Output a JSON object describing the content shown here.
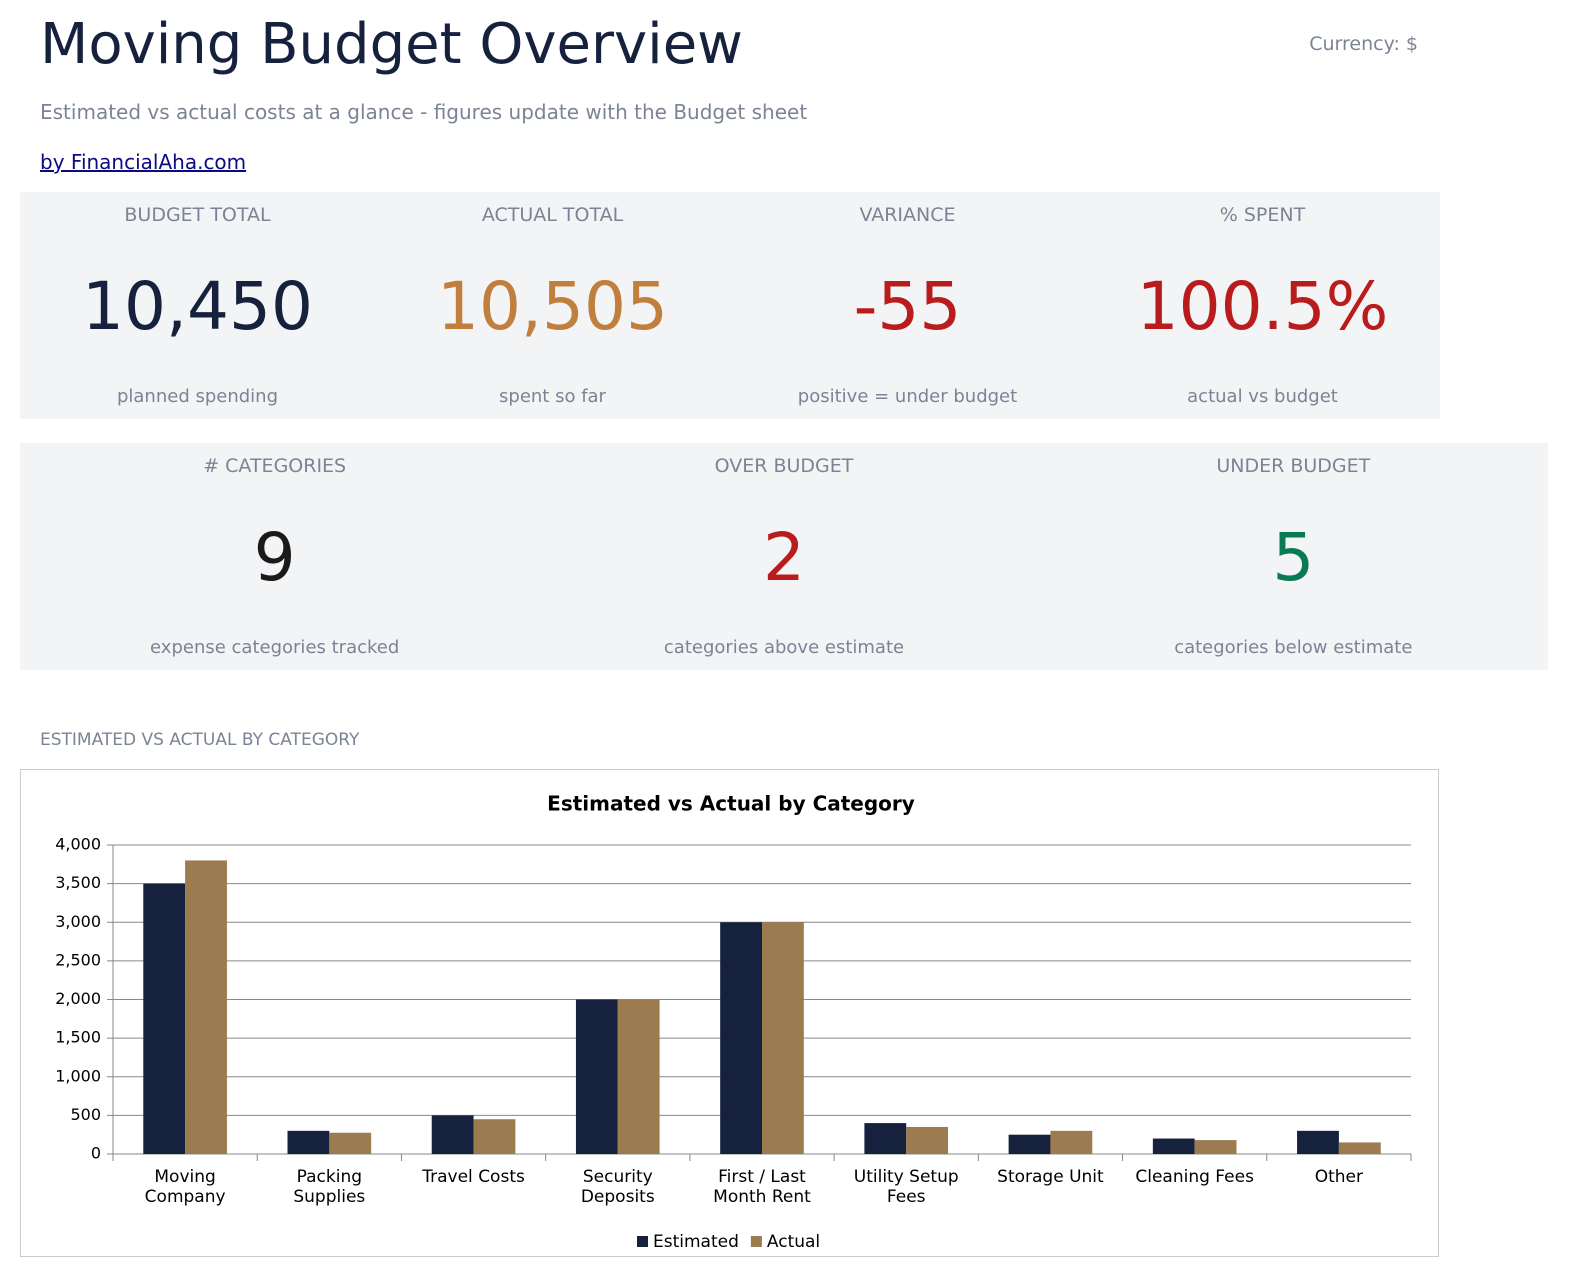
{
  "header": {
    "title": "Moving Budget Overview",
    "currency": "Currency: $",
    "subtitle": "Estimated vs actual costs at a glance - figures update with the Budget sheet",
    "link": "by FinancialAha.com"
  },
  "kpis_top": [
    {
      "label": "BUDGET TOTAL",
      "value": "10,450",
      "note": "planned spending"
    },
    {
      "label": "ACTUAL TOTAL",
      "value": "10,505",
      "note": "spent so far"
    },
    {
      "label": "VARIANCE",
      "value": "-55",
      "note": "positive = under budget"
    },
    {
      "label": "% SPENT",
      "value": "100.5%",
      "note": "actual vs budget"
    }
  ],
  "kpis_bottom": [
    {
      "label": "# CATEGORIES",
      "value": "9",
      "note": "expense categories tracked"
    },
    {
      "label": "OVER BUDGET",
      "value": "2",
      "note": "categories above estimate"
    },
    {
      "label": "UNDER BUDGET",
      "value": "5",
      "note": "categories below estimate"
    }
  ],
  "section_title": "ESTIMATED VS ACTUAL BY CATEGORY",
  "chart_data": {
    "type": "bar",
    "title": "Estimated vs Actual by Category",
    "categories": [
      "Moving Company",
      "Packing Supplies",
      "Travel Costs",
      "Security Deposits",
      "First / Last Month Rent",
      "Utility Setup Fees",
      "Storage Unit",
      "Cleaning Fees",
      "Other"
    ],
    "series": [
      {
        "name": "Estimated",
        "color": "#16213e",
        "values": [
          3500,
          300,
          500,
          2000,
          3000,
          400,
          250,
          200,
          300
        ]
      },
      {
        "name": "Actual",
        "color": "#9b7b4f",
        "values": [
          3800,
          275,
          450,
          2000,
          3000,
          350,
          300,
          180,
          150
        ]
      }
    ],
    "ylim": [
      0,
      4000
    ],
    "yticks": [
      0,
      500,
      {
        "value": 1000,
        "label": "1,000"
      },
      {
        "value": 1500,
        "label": "1,500"
      },
      {
        "value": 2000,
        "label": "2,000"
      },
      {
        "value": 2500,
        "label": "2,500"
      },
      {
        "value": 3000,
        "label": "3,000"
      },
      {
        "value": 3500,
        "label": "3,500"
      },
      {
        "value": 4000,
        "label": "4,000"
      }
    ],
    "grid": true,
    "legend": "bottom"
  }
}
